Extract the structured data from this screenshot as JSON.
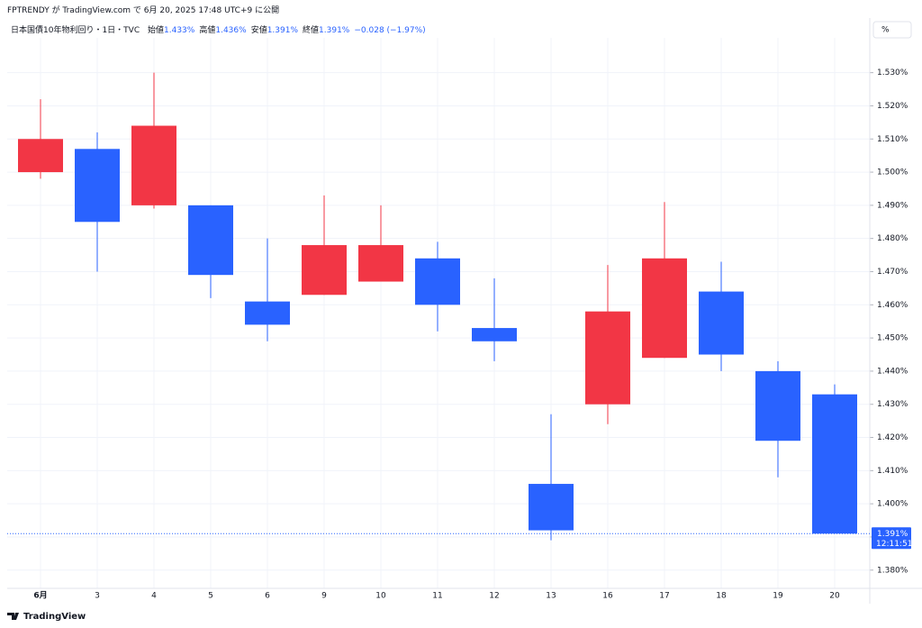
{
  "header": "FPTRENDY が TradingView.com で 6月 20, 2025 17:48 UTC+9 に公開",
  "scale_button": "%",
  "footer": "TradingView",
  "chart_data": {
    "type": "candlestick",
    "legend": {
      "name": "日本国債10年物利回り・1日・TVC",
      "fields": [
        {
          "label": "始値",
          "value": "1.433%"
        },
        {
          "label": "高値",
          "value": "1.436%"
        },
        {
          "label": "安値",
          "value": "1.391%"
        },
        {
          "label": "終値",
          "value": "1.391%"
        }
      ],
      "change": "−0.028 (−1.97%)"
    },
    "categories": [
      "6月",
      "3",
      "4",
      "5",
      "6",
      "9",
      "10",
      "11",
      "12",
      "13",
      "16",
      "17",
      "18",
      "19",
      "20"
    ],
    "open": [
      1.5,
      1.507,
      1.49,
      1.49,
      1.461,
      1.463,
      1.467,
      1.474,
      1.453,
      1.406,
      1.43,
      1.444,
      1.464,
      1.44,
      1.433
    ],
    "high": [
      1.522,
      1.512,
      1.53,
      1.49,
      1.48,
      1.493,
      1.49,
      1.479,
      1.468,
      1.427,
      1.472,
      1.491,
      1.473,
      1.443,
      1.436
    ],
    "low": [
      1.498,
      1.47,
      1.489,
      1.462,
      1.449,
      1.463,
      1.467,
      1.452,
      1.443,
      1.389,
      1.424,
      1.444,
      1.44,
      1.408,
      1.391
    ],
    "close": [
      1.51,
      1.485,
      1.514,
      1.469,
      1.454,
      1.478,
      1.478,
      1.46,
      1.449,
      1.392,
      1.458,
      1.474,
      1.445,
      1.419,
      1.391
    ],
    "up_color": "#f23645",
    "down_color": "#2962ff",
    "ylim": [
      1.3745,
      1.5405
    ],
    "yticks": [
      {
        "value": 1.38,
        "label": "1.380%"
      },
      {
        "value": 1.39,
        "label": "1.390%"
      },
      {
        "value": 1.4,
        "label": "1.400%"
      },
      {
        "value": 1.41,
        "label": "1.410%"
      },
      {
        "value": 1.42,
        "label": "1.420%"
      },
      {
        "value": 1.43,
        "label": "1.430%"
      },
      {
        "value": 1.44,
        "label": "1.440%"
      },
      {
        "value": 1.45,
        "label": "1.450%"
      },
      {
        "value": 1.46,
        "label": "1.460%"
      },
      {
        "value": 1.47,
        "label": "1.470%"
      },
      {
        "value": 1.48,
        "label": "1.480%"
      },
      {
        "value": 1.49,
        "label": "1.490%"
      },
      {
        "value": 1.5,
        "label": "1.500%"
      },
      {
        "value": 1.51,
        "label": "1.510%"
      },
      {
        "value": 1.52,
        "label": "1.520%"
      },
      {
        "value": 1.53,
        "label": "1.530%"
      }
    ],
    "grid": true,
    "current_price": {
      "value": 1.391,
      "label": "1.391%"
    },
    "countdown": "12:11:51"
  }
}
